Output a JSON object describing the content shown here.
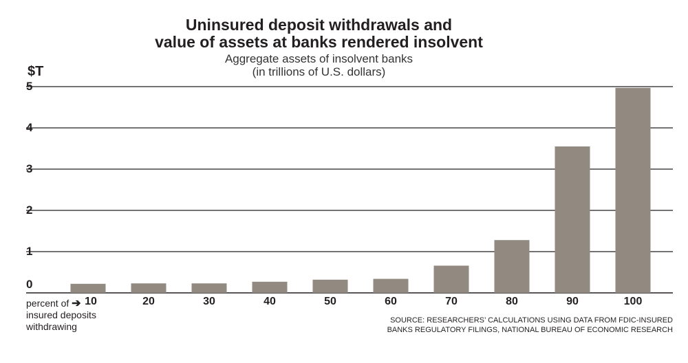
{
  "chart_data": {
    "type": "bar",
    "title_line1": "Uninsured deposit withdrawals and",
    "title_line2": "value of assets at banks rendered insolvent",
    "subtitle_line1": "Aggregate assets of insolvent banks",
    "subtitle_line2": "(in trillions of U.S. dollars)",
    "unit_label": "$T",
    "categories": [
      "10",
      "20",
      "30",
      "40",
      "50",
      "60",
      "70",
      "80",
      "90",
      "100"
    ],
    "values": [
      0.22,
      0.23,
      0.23,
      0.27,
      0.32,
      0.34,
      0.66,
      1.28,
      3.55,
      4.97
    ],
    "ylim": [
      0,
      5
    ],
    "yticks": [
      "0",
      "1",
      "2",
      "3",
      "4",
      "5"
    ],
    "x_note_prefix": "percent of",
    "x_note_arrow": "➔",
    "x_note_line2": "insured deposits",
    "x_note_line3": "withdrawing",
    "source_line1": "SOURCE: RESEARCHERS’ CALCULATIONS USING DATA FROM FDIC-INSURED",
    "source_line2": "BANKS REGULATORY FILINGS, NATIONAL BUREAU OF ECONOMIC RESEARCH",
    "bar_color": "#928a80",
    "grid": true
  }
}
